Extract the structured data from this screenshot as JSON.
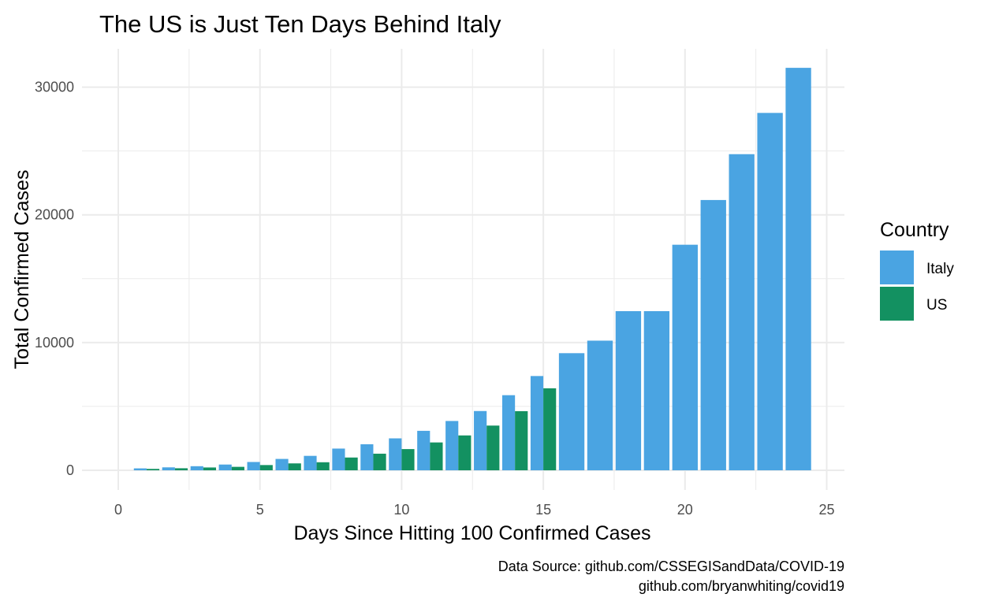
{
  "chart_data": {
    "type": "bar",
    "title": "The US is Just Ten Days Behind Italy",
    "xlabel": "Days Since Hitting 100 Confirmed Cases",
    "ylabel": "Total Confirmed Cases",
    "xlim": [
      0,
      25
    ],
    "ylim": [
      0,
      32000
    ],
    "x_ticks": [
      "0",
      "5",
      "10",
      "15",
      "20",
      "25"
    ],
    "y_ticks": [
      "0",
      "10000",
      "20000",
      "30000"
    ],
    "grid": true,
    "legend": {
      "title": "Country",
      "position": "right"
    },
    "caption": [
      "Data Source: github.com/CSSEGISandData/COVID-19",
      "github.com/bryanwhiting/covid19"
    ],
    "series": [
      {
        "name": "Italy",
        "color": "#4AA4E2",
        "x": [
          1,
          2,
          3,
          4,
          5,
          6,
          7,
          8,
          9,
          10,
          11,
          12,
          13,
          14,
          15,
          16,
          17,
          18,
          19,
          20,
          21,
          22,
          23,
          24
        ],
        "values": [
          150,
          230,
          320,
          450,
          650,
          890,
          1130,
          1700,
          2040,
          2500,
          3090,
          3860,
          4640,
          5880,
          7380,
          9170,
          10150,
          12460,
          12460,
          17660,
          21160,
          24750,
          27980,
          31510
        ]
      },
      {
        "name": "US",
        "color": "#139161",
        "x": [
          1,
          2,
          3,
          4,
          5,
          6,
          7,
          8,
          9,
          10,
          11,
          12,
          13,
          14,
          15
        ],
        "values": [
          110,
          160,
          220,
          270,
          410,
          540,
          630,
          1000,
          1300,
          1660,
          2180,
          2730,
          3500,
          4630,
          6420
        ]
      }
    ]
  }
}
